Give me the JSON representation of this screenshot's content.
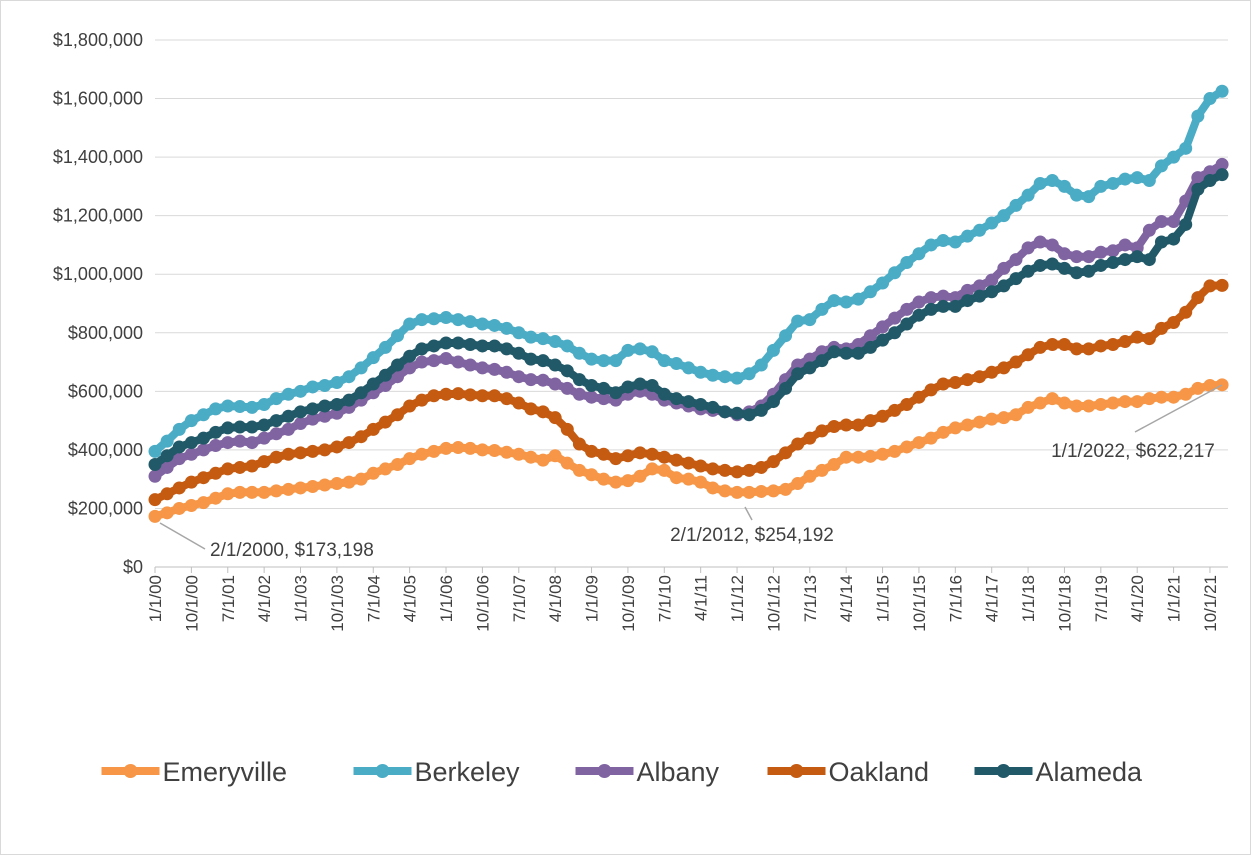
{
  "chart_data": {
    "type": "line",
    "categories": [
      "1/1/00",
      null,
      null,
      "10/1/00",
      null,
      null,
      "7/1/01",
      null,
      null,
      "4/1/02",
      null,
      null,
      "1/1/03",
      null,
      null,
      "10/1/03",
      null,
      null,
      "7/1/04",
      null,
      null,
      "4/1/05",
      null,
      null,
      "1/1/06",
      null,
      null,
      "10/1/06",
      null,
      null,
      "7/1/07",
      null,
      null,
      "4/1/08",
      null,
      null,
      "1/1/09",
      null,
      null,
      "10/1/09",
      null,
      null,
      "7/1/10",
      null,
      null,
      "4/1/11",
      null,
      null,
      "1/1/12",
      null,
      null,
      "10/1/12",
      null,
      null,
      "7/1/13",
      null,
      null,
      "4/1/14",
      null,
      null,
      "1/1/15",
      null,
      null,
      "10/1/15",
      null,
      null,
      "7/1/16",
      null,
      null,
      "4/1/17",
      null,
      null,
      "1/1/18",
      null,
      null,
      "10/1/18",
      null,
      null,
      "7/1/19",
      null,
      null,
      "4/1/20",
      null,
      null,
      "1/1/21",
      null,
      null,
      "10/1/21",
      null
    ],
    "series": [
      {
        "name": "Emeryville",
        "color": "#f79646",
        "values": [
          173000,
          185000,
          200000,
          210000,
          220000,
          235000,
          250000,
          255000,
          255000,
          255000,
          260000,
          265000,
          270000,
          275000,
          280000,
          285000,
          290000,
          300000,
          320000,
          335000,
          350000,
          370000,
          385000,
          395000,
          405000,
          408000,
          405000,
          400000,
          398000,
          392000,
          385000,
          375000,
          365000,
          380000,
          355000,
          330000,
          315000,
          300000,
          290000,
          295000,
          310000,
          335000,
          330000,
          305000,
          300000,
          290000,
          270000,
          260000,
          255000,
          255000,
          258000,
          260000,
          265000,
          285000,
          310000,
          330000,
          350000,
          375000,
          375000,
          378000,
          385000,
          395000,
          410000,
          425000,
          440000,
          460000,
          475000,
          485000,
          495000,
          505000,
          510000,
          520000,
          545000,
          560000,
          575000,
          560000,
          550000,
          550000,
          555000,
          560000,
          565000,
          565000,
          575000,
          580000,
          580000,
          590000,
          610000,
          620000,
          622217
        ]
      },
      {
        "name": "Berkeley",
        "color": "#4bacc6",
        "values": [
          395000,
          430000,
          470000,
          500000,
          520000,
          540000,
          550000,
          548000,
          545000,
          555000,
          575000,
          590000,
          600000,
          615000,
          620000,
          630000,
          650000,
          680000,
          715000,
          750000,
          790000,
          830000,
          845000,
          848000,
          852000,
          845000,
          838000,
          830000,
          825000,
          815000,
          800000,
          785000,
          780000,
          770000,
          755000,
          730000,
          710000,
          705000,
          705000,
          740000,
          745000,
          735000,
          705000,
          695000,
          680000,
          665000,
          655000,
          650000,
          645000,
          660000,
          690000,
          740000,
          790000,
          840000,
          845000,
          880000,
          910000,
          905000,
          915000,
          940000,
          970000,
          1005000,
          1040000,
          1070000,
          1100000,
          1115000,
          1110000,
          1130000,
          1150000,
          1175000,
          1200000,
          1235000,
          1270000,
          1310000,
          1320000,
          1300000,
          1270000,
          1265000,
          1300000,
          1310000,
          1325000,
          1330000,
          1320000,
          1370000,
          1400000,
          1430000,
          1540000,
          1600000,
          1625000
        ]
      },
      {
        "name": "Albany",
        "color": "#8064a2",
        "values": [
          310000,
          340000,
          370000,
          385000,
          400000,
          415000,
          425000,
          430000,
          425000,
          440000,
          455000,
          470000,
          490000,
          505000,
          515000,
          525000,
          545000,
          570000,
          595000,
          620000,
          650000,
          680000,
          700000,
          705000,
          712000,
          700000,
          690000,
          680000,
          675000,
          665000,
          650000,
          640000,
          638000,
          625000,
          610000,
          590000,
          580000,
          575000,
          570000,
          590000,
          600000,
          590000,
          570000,
          560000,
          550000,
          540000,
          535000,
          530000,
          520000,
          530000,
          550000,
          590000,
          640000,
          690000,
          710000,
          735000,
          750000,
          745000,
          760000,
          790000,
          820000,
          850000,
          880000,
          905000,
          920000,
          925000,
          920000,
          945000,
          960000,
          980000,
          1020000,
          1050000,
          1090000,
          1110000,
          1100000,
          1070000,
          1060000,
          1060000,
          1075000,
          1080000,
          1100000,
          1090000,
          1150000,
          1180000,
          1180000,
          1250000,
          1330000,
          1350000,
          1375000
        ]
      },
      {
        "name": "Oakland",
        "color": "#c55a11",
        "values": [
          230000,
          250000,
          270000,
          290000,
          305000,
          320000,
          335000,
          340000,
          345000,
          360000,
          375000,
          385000,
          390000,
          395000,
          400000,
          410000,
          425000,
          445000,
          470000,
          495000,
          520000,
          550000,
          570000,
          585000,
          590000,
          592000,
          588000,
          585000,
          585000,
          575000,
          560000,
          540000,
          530000,
          510000,
          470000,
          420000,
          395000,
          385000,
          370000,
          380000,
          390000,
          385000,
          375000,
          365000,
          355000,
          345000,
          335000,
          330000,
          325000,
          330000,
          340000,
          360000,
          390000,
          420000,
          440000,
          465000,
          480000,
          485000,
          485000,
          500000,
          515000,
          535000,
          555000,
          580000,
          605000,
          625000,
          630000,
          640000,
          650000,
          665000,
          680000,
          700000,
          725000,
          750000,
          760000,
          760000,
          745000,
          745000,
          755000,
          760000,
          770000,
          785000,
          780000,
          815000,
          835000,
          870000,
          920000,
          960000,
          962000
        ]
      },
      {
        "name": "Alameda",
        "color": "#215968",
        "values": [
          350000,
          380000,
          410000,
          425000,
          440000,
          460000,
          475000,
          478000,
          478000,
          485000,
          500000,
          515000,
          530000,
          540000,
          550000,
          555000,
          570000,
          595000,
          625000,
          655000,
          690000,
          720000,
          745000,
          755000,
          765000,
          765000,
          760000,
          755000,
          755000,
          745000,
          730000,
          710000,
          705000,
          690000,
          670000,
          640000,
          620000,
          610000,
          595000,
          615000,
          625000,
          620000,
          590000,
          575000,
          565000,
          555000,
          545000,
          530000,
          525000,
          520000,
          535000,
          565000,
          610000,
          660000,
          680000,
          705000,
          735000,
          730000,
          730000,
          750000,
          775000,
          800000,
          830000,
          860000,
          880000,
          890000,
          890000,
          910000,
          925000,
          940000,
          960000,
          985000,
          1010000,
          1030000,
          1035000,
          1020000,
          1005000,
          1010000,
          1030000,
          1040000,
          1050000,
          1060000,
          1050000,
          1110000,
          1120000,
          1170000,
          1290000,
          1320000,
          1340000
        ]
      }
    ],
    "ylim": [
      0,
      1800000
    ],
    "yticks": [
      {
        "value": 0,
        "label": "$0"
      },
      {
        "value": 200000,
        "label": "$200,000"
      },
      {
        "value": 400000,
        "label": "$400,000"
      },
      {
        "value": 600000,
        "label": "$600,000"
      },
      {
        "value": 800000,
        "label": "$800,000"
      },
      {
        "value": 1000000,
        "label": "$1,000,000"
      },
      {
        "value": 1200000,
        "label": "$1,200,000"
      },
      {
        "value": 1400000,
        "label": "$1,400,000"
      },
      {
        "value": 1600000,
        "label": "$1,600,000"
      },
      {
        "value": 1800000,
        "label": "$1,800,000"
      }
    ],
    "grid": true,
    "legend": "bottom",
    "annotations": [
      "2/1/2000, $173,198",
      "2/1/2012, $254,192",
      "1/1/2022, $622,217"
    ]
  }
}
